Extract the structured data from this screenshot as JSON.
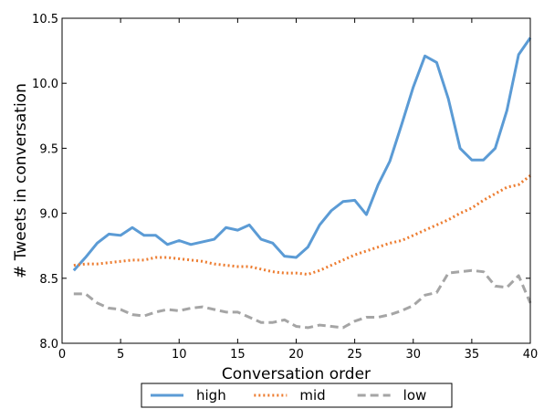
{
  "chart_data": {
    "type": "line",
    "xlabel": "Conversation order",
    "ylabel": "# Tweets in conversation",
    "xlim": [
      0,
      40
    ],
    "ylim": [
      8.0,
      10.5
    ],
    "xticks": [
      "0",
      "5",
      "10",
      "15",
      "20",
      "25",
      "30",
      "35",
      "40"
    ],
    "yticks": [
      "8.0",
      "8.5",
      "9.0",
      "9.5",
      "10.0",
      "10.5"
    ],
    "grid": false,
    "legend_position": "bottom-center",
    "x": [
      1,
      2,
      3,
      4,
      5,
      6,
      7,
      8,
      9,
      10,
      11,
      12,
      13,
      14,
      15,
      16,
      17,
      18,
      19,
      20,
      21,
      22,
      23,
      24,
      25,
      26,
      27,
      28,
      29,
      30,
      31,
      32,
      33,
      34,
      35,
      36,
      37,
      38,
      39,
      40
    ],
    "series": [
      {
        "name": "high",
        "color": "#5b9bd5",
        "style": "solid",
        "values": [
          8.56,
          8.66,
          8.77,
          8.84,
          8.83,
          8.89,
          8.83,
          8.83,
          8.76,
          8.79,
          8.76,
          8.78,
          8.8,
          8.89,
          8.87,
          8.91,
          8.8,
          8.77,
          8.67,
          8.66,
          8.74,
          8.91,
          9.02,
          9.09,
          9.1,
          8.99,
          9.22,
          9.4,
          9.68,
          9.97,
          10.21,
          10.16,
          9.88,
          9.5,
          9.41,
          9.41,
          9.5,
          9.79,
          10.22,
          10.35
        ]
      },
      {
        "name": "mid",
        "color": "#ed7d31",
        "style": "dotted",
        "values": [
          8.6,
          8.61,
          8.61,
          8.62,
          8.63,
          8.64,
          8.64,
          8.66,
          8.66,
          8.65,
          8.64,
          8.63,
          8.61,
          8.6,
          8.59,
          8.59,
          8.57,
          8.55,
          8.54,
          8.54,
          8.53,
          8.56,
          8.6,
          8.64,
          8.68,
          8.71,
          8.74,
          8.77,
          8.79,
          8.83,
          8.87,
          8.91,
          8.95,
          9.0,
          9.04,
          9.1,
          9.15,
          9.2,
          9.22,
          9.29
        ]
      },
      {
        "name": "low",
        "color": "#a5a5a5",
        "style": "dashed",
        "values": [
          8.38,
          8.38,
          8.31,
          8.27,
          8.26,
          8.22,
          8.21,
          8.24,
          8.26,
          8.25,
          8.27,
          8.28,
          8.26,
          8.24,
          8.24,
          8.2,
          8.16,
          8.16,
          8.18,
          8.13,
          8.12,
          8.14,
          8.13,
          8.12,
          8.17,
          8.2,
          8.2,
          8.22,
          8.25,
          8.29,
          8.37,
          8.39,
          8.54,
          8.55,
          8.56,
          8.55,
          8.44,
          8.43,
          8.52,
          8.31
        ]
      }
    ]
  }
}
